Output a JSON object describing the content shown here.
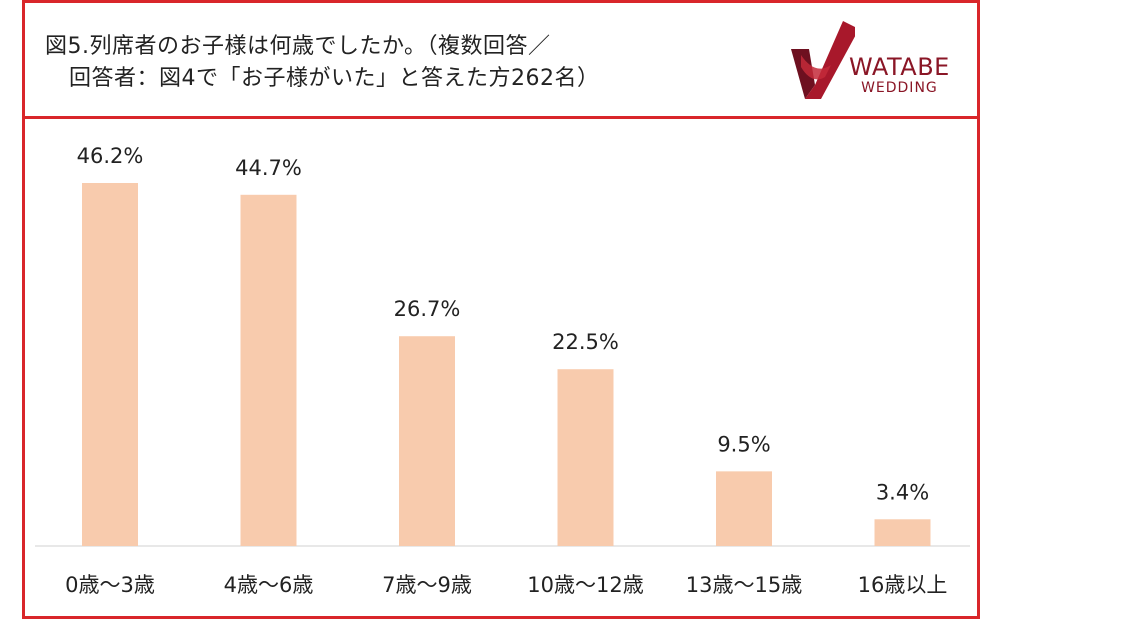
{
  "title": {
    "line1": "図5.列席者のお子様は何歳でしたか。（複数回答／",
    "line2": "回答者：図4で「お子様がいた」と答えた方262名）"
  },
  "logo": {
    "brand": "WATABE",
    "sub": "WEDDING",
    "mark_icon": "ribbon-check-icon"
  },
  "colors": {
    "frame": "#d9262a",
    "bar": "#f8cbad",
    "logo": "#8a1626"
  },
  "chart_data": {
    "type": "bar",
    "categories": [
      "0歳～3歳",
      "4歳～6歳",
      "7歳～9歳",
      "10歳～12歳",
      "13歳～15歳",
      "16歳以上"
    ],
    "values": [
      46.2,
      44.7,
      26.7,
      22.5,
      9.5,
      3.4
    ],
    "data_labels": [
      "46.2%",
      "44.7%",
      "26.7%",
      "22.5%",
      "9.5%",
      "3.4%"
    ],
    "unit": "%",
    "ylim": [
      0,
      46.2
    ],
    "grid": false,
    "legend": "none"
  }
}
